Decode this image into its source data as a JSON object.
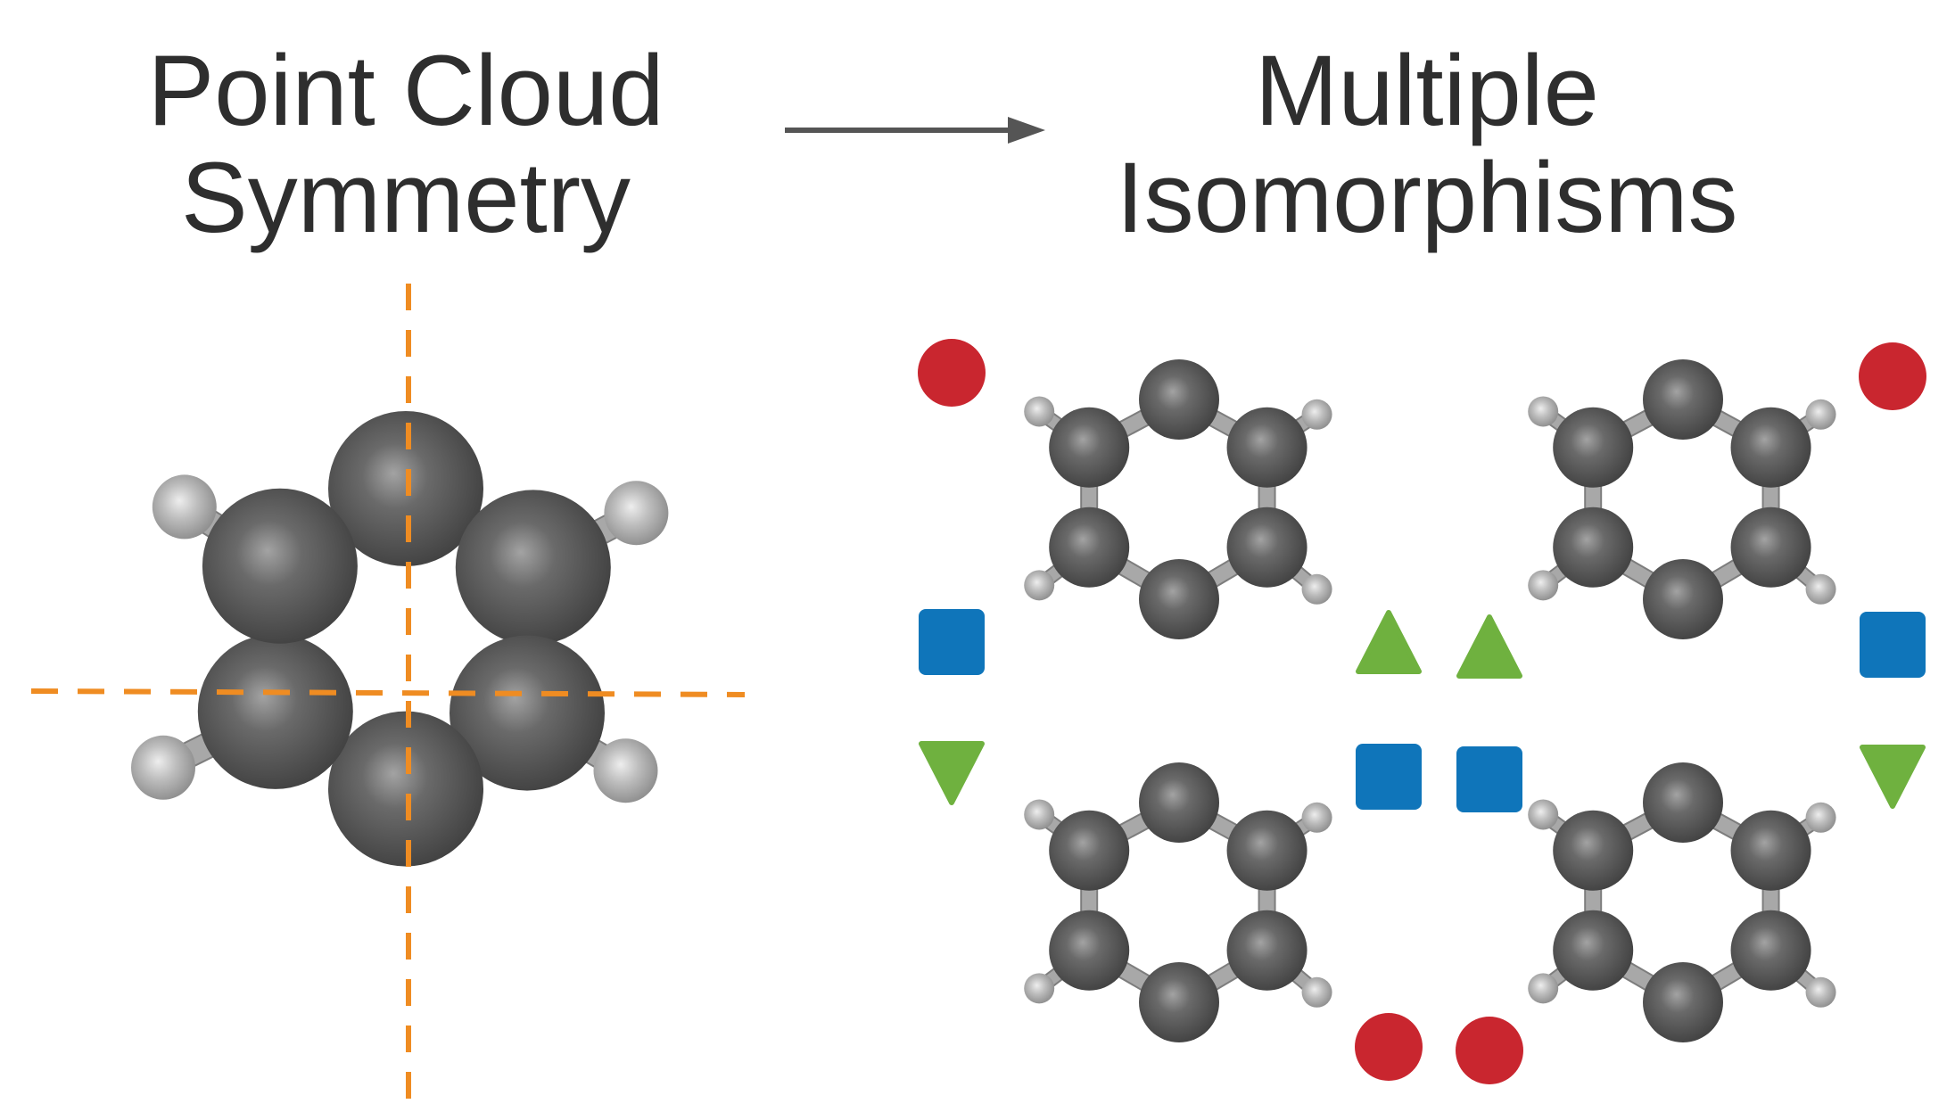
{
  "left_title": {
    "line1": "Point Cloud",
    "line2": "Symmetry"
  },
  "right_title": {
    "line1": "Multiple",
    "line2": "Isomorphisms"
  },
  "colors": {
    "text": "#2e2e2e",
    "arrow": "#555555",
    "symmetry_axis": "#ef8c22",
    "carbon": "#5f5f5f",
    "hydrogen": "#b4b4b4",
    "bond": "#a8a8a8",
    "marker_circle": "#c9262f",
    "marker_square": "#0f75ba",
    "marker_triangle": "#6fb13f"
  },
  "icons": [
    "arrow-right-icon",
    "circle-marker-icon",
    "square-marker-icon",
    "triangle-up-marker-icon",
    "triangle-down-marker-icon"
  ]
}
